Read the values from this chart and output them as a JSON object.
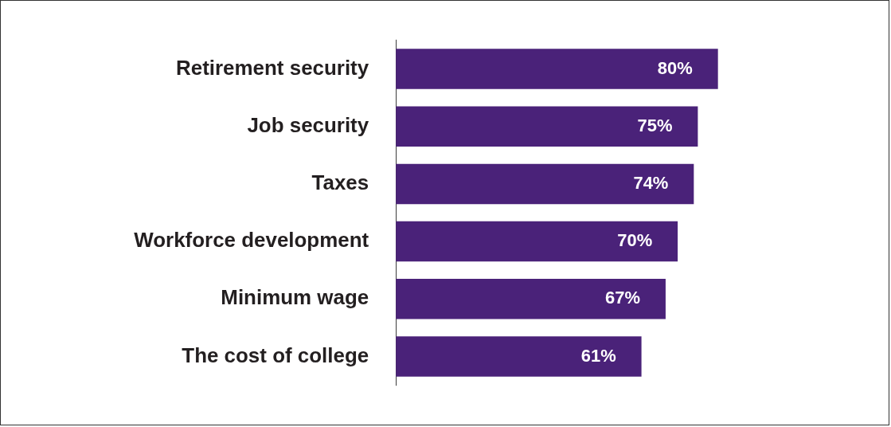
{
  "chart_data": {
    "type": "bar",
    "orientation": "horizontal",
    "categories": [
      "Retirement security",
      "Job security",
      "Taxes",
      "Workforce development",
      "Minimum wage",
      "The cost of college"
    ],
    "values": [
      80,
      75,
      74,
      70,
      67,
      61
    ],
    "value_labels": [
      "80%",
      "75%",
      "74%",
      "70%",
      "67%",
      "61%"
    ],
    "color": "#4a2279",
    "tick_labels": "y"
  }
}
